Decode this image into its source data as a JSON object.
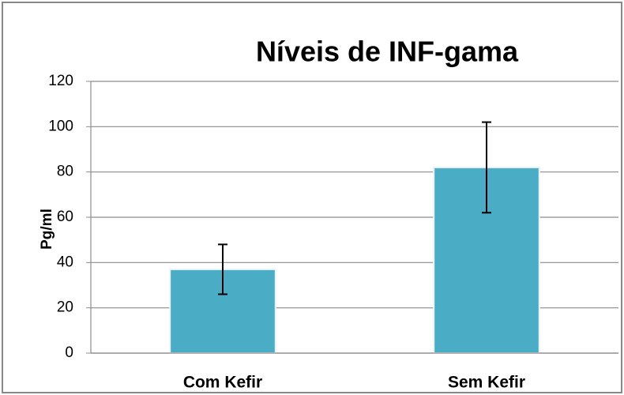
{
  "chart_data": {
    "type": "bar",
    "title": "Níveis de INF-gama",
    "y_label": "Pg/ml",
    "categories": [
      "Com Kefir",
      "Sem Kefir"
    ],
    "values": [
      37,
      82
    ],
    "errors": [
      11,
      20
    ],
    "color": "#4bacc6",
    "ylim": [
      0,
      120
    ],
    "yticks": [
      0,
      20,
      40,
      60,
      80,
      100,
      120
    ],
    "grid": true
  }
}
